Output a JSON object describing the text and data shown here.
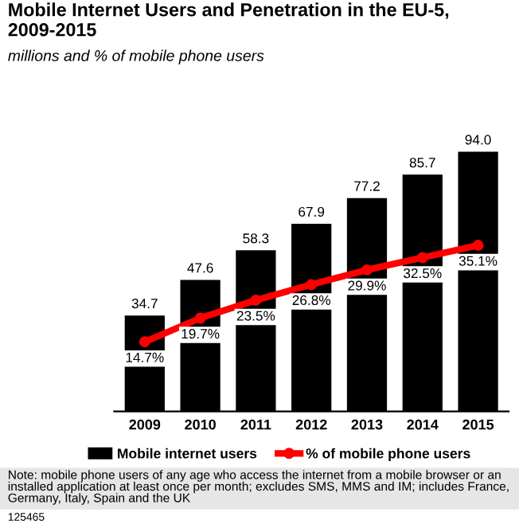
{
  "chart_data": {
    "type": "bar",
    "title": "Mobile Internet Users and Penetration in the EU-5, 2009-2015",
    "subtitle": "millions and % of mobile phone users",
    "categories": [
      "2009",
      "2010",
      "2011",
      "2012",
      "2013",
      "2014",
      "2015"
    ],
    "series": [
      {
        "name": "Mobile internet users",
        "color": "#000000",
        "values": [
          34.7,
          47.6,
          58.3,
          67.9,
          77.2,
          85.7,
          94.0
        ],
        "value_labels": [
          "34.7",
          "47.6",
          "58.3",
          "67.9",
          "77.2",
          "85.7",
          "94.0"
        ]
      },
      {
        "name": "% of mobile phone users",
        "type": "line",
        "axis": "y2",
        "color": "#ff0000",
        "marker": "circle",
        "values": [
          14.7,
          19.7,
          23.5,
          26.8,
          29.9,
          32.5,
          35.1
        ],
        "value_labels": [
          "14.7%",
          "19.7%",
          "23.5%",
          "26.8%",
          "29.9%",
          "32.5%",
          "35.1%"
        ]
      }
    ],
    "legend": "bottom",
    "grid": false,
    "tick_labels": "x",
    "annotations": [
      "Note: mobile phone users of any age who access the internet from a mobile browser or an installed application at least once per month; excludes SMS, MMS and IM; includes France, Germany, Italy, Spain and the UK",
      "125465"
    ]
  }
}
